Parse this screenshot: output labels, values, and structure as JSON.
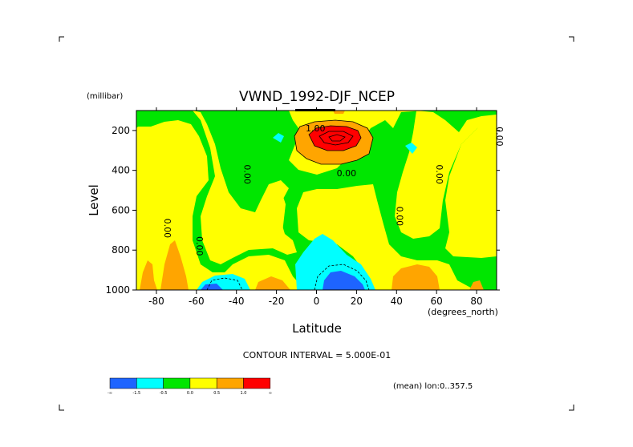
{
  "chart_data": {
    "type": "heatmap",
    "title": "VWND_1992-DJF_NCEP",
    "xlabel": "Latitude",
    "ylabel": "Level",
    "x_unit": "(degrees_north)",
    "y_unit": "(millibar)",
    "xlim": [
      -90,
      90
    ],
    "ylim": [
      1000,
      100
    ],
    "x_ticks": [
      -80,
      -60,
      -40,
      -20,
      0,
      20,
      40,
      60,
      80
    ],
    "x_tick_labels": [
      "-80",
      "-60",
      "-40",
      "-20",
      "0",
      "20",
      "40",
      "60",
      "80"
    ],
    "y_ticks": [
      200,
      400,
      600,
      800,
      1000
    ],
    "y_tick_labels": [
      "200",
      "400",
      "600",
      "800",
      "1000"
    ],
    "contour_interval_text": "CONTOUR INTERVAL = 5.000E-01",
    "mean_text": "(mean) lon:0..357.5",
    "contour_labels": [
      {
        "text": "1.00",
        "lat": -0.5,
        "level": 205
      },
      {
        "text": "0.00",
        "lat": 15,
        "level": 430
      },
      {
        "text": "0.00",
        "lat": -36,
        "level": 420
      },
      {
        "text": "0.00",
        "lat": -60,
        "level": 780
      },
      {
        "text": "0.00",
        "lat": -76,
        "level": 690
      },
      {
        "text": "0.00",
        "lat": 40,
        "level": 630
      },
      {
        "text": "0.00",
        "lat": 60,
        "level": 420
      },
      {
        "text": "0.00",
        "lat": 90,
        "level": 230
      }
    ],
    "colorbar": {
      "colors": [
        "#1e64ff",
        "#00ffff",
        "#00e600",
        "#ffff00",
        "#ffa500",
        "#ff0000"
      ],
      "labels": [
        "-∞",
        "-1.5",
        "-0.5",
        "0.0",
        "0.5",
        "1.0",
        "∞"
      ]
    }
  }
}
